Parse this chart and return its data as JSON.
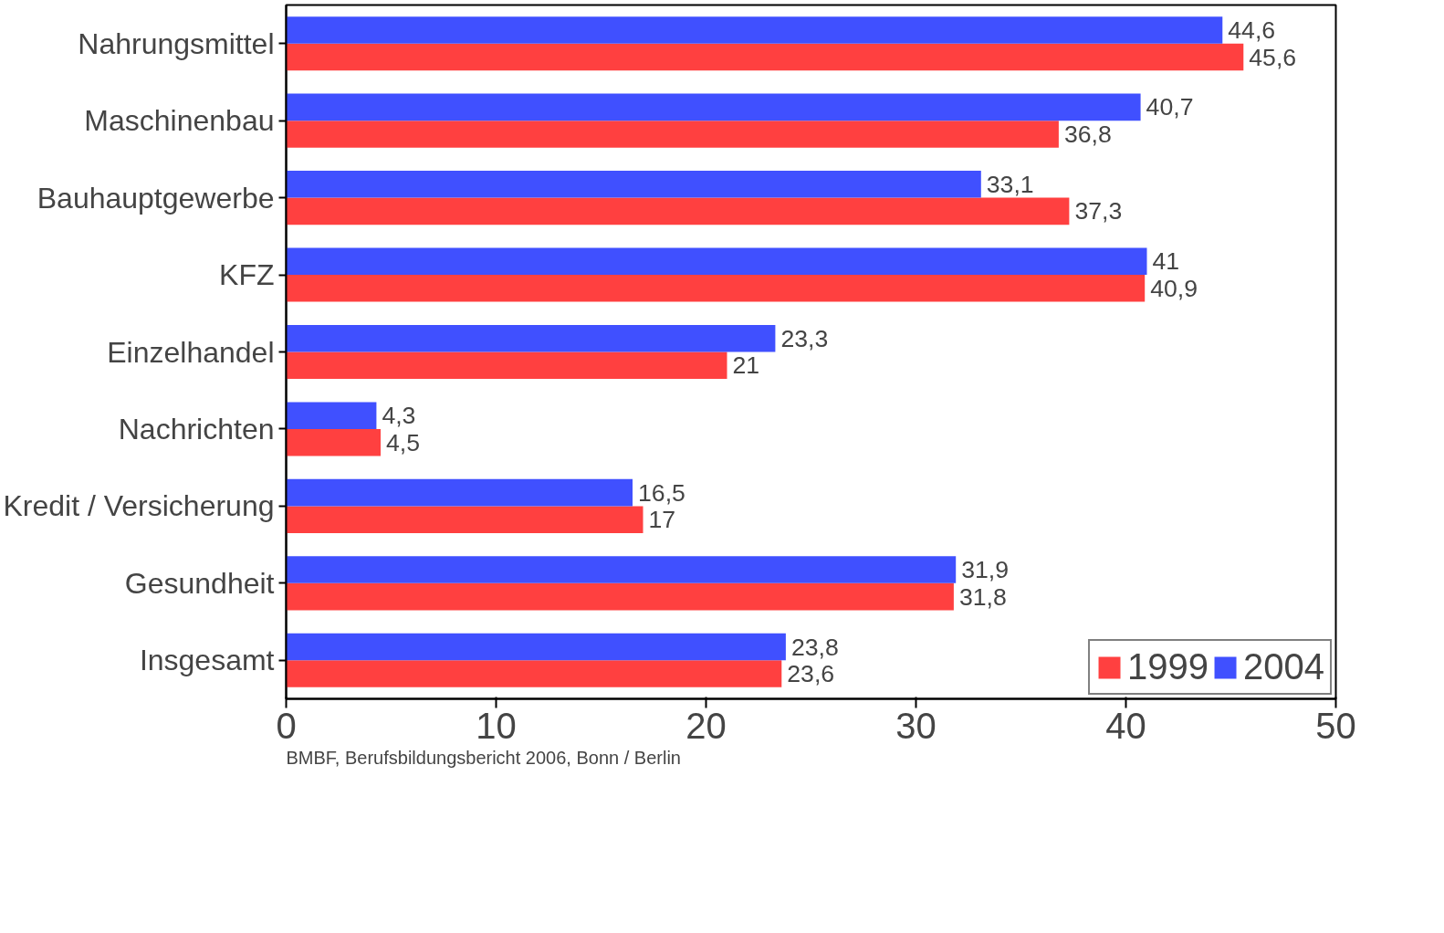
{
  "chart_data": {
    "type": "bar",
    "orientation": "horizontal",
    "categories": [
      "Nahrungsmittel",
      "Maschinenbau",
      "Bauhauptgewerbe",
      "KFZ",
      "Einzelhandel",
      "Nachrichten",
      "Kredit / Versicherung",
      "Gesundheit",
      "Insgesamt"
    ],
    "series": [
      {
        "name": "1999",
        "color": "#ff4040",
        "values": [
          45.6,
          36.8,
          37.3,
          40.9,
          21,
          4.5,
          17,
          31.8,
          23.6
        ],
        "value_labels": [
          "45,6",
          "36,8",
          "37,3",
          "40,9",
          "21",
          "4,5",
          "17",
          "31,8",
          "23,6"
        ]
      },
      {
        "name": "2004",
        "color": "#4050ff",
        "values": [
          44.6,
          40.7,
          33.1,
          41,
          23.3,
          4.3,
          16.5,
          31.9,
          23.8
        ],
        "value_labels": [
          "44,6",
          "40,7",
          "33,1",
          "41",
          "23,3",
          "4,3",
          "16,5",
          "31,9",
          "23,8"
        ]
      }
    ],
    "xlim": [
      0,
      50
    ],
    "xticks": [
      0,
      10,
      20,
      30,
      40,
      50
    ],
    "grid": false,
    "legend": "bottom right",
    "annotations": [
      "BMBF, Berufsbildungsbericht 2006, Bonn / Berlin"
    ]
  }
}
